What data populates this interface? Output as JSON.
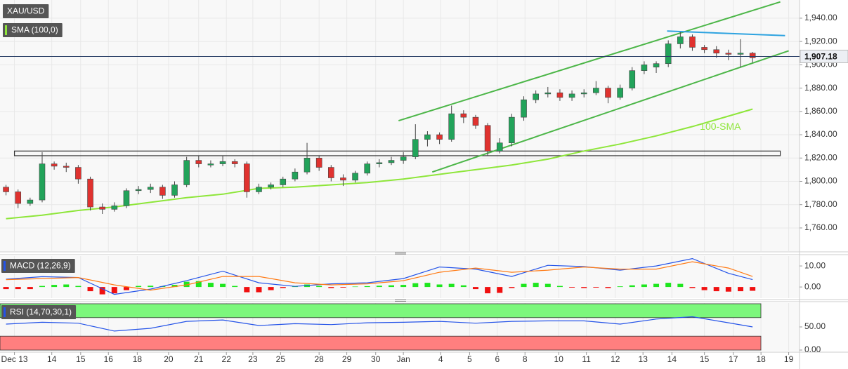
{
  "chart_data": [
    {
      "type": "candlestick",
      "title": "XAU/USD",
      "indicator": "SMA (100,0)",
      "xlim": [
        -0.5,
        65.9
      ],
      "xticks": [
        {
          "value": 0.7,
          "label": "Dec 13"
        },
        {
          "value": 3.8,
          "label": "14"
        },
        {
          "value": 6.2,
          "label": "15"
        },
        {
          "value": 8.5,
          "label": "16"
        },
        {
          "value": 10.9,
          "label": "18"
        },
        {
          "value": 13.5,
          "label": "20"
        },
        {
          "value": 16.0,
          "label": "21"
        },
        {
          "value": 18.3,
          "label": "22"
        },
        {
          "value": 20.5,
          "label": "23"
        },
        {
          "value": 22.8,
          "label": "25"
        },
        {
          "value": 26.0,
          "label": "28"
        },
        {
          "value": 28.3,
          "label": "29"
        },
        {
          "value": 30.7,
          "label": "30"
        },
        {
          "value": 33.0,
          "label": "Jan"
        },
        {
          "value": 36.1,
          "label": "4"
        },
        {
          "value": 38.5,
          "label": "5"
        },
        {
          "value": 40.8,
          "label": "6"
        },
        {
          "value": 43.1,
          "label": "8"
        },
        {
          "value": 45.9,
          "label": "10"
        },
        {
          "value": 48.2,
          "label": "11"
        },
        {
          "value": 50.6,
          "label": "12"
        },
        {
          "value": 52.9,
          "label": "13"
        },
        {
          "value": 55.3,
          "label": "14"
        },
        {
          "value": 58.0,
          "label": "15"
        },
        {
          "value": 60.4,
          "label": "17"
        },
        {
          "value": 62.7,
          "label": "18"
        },
        {
          "value": 65.0,
          "label": "19"
        }
      ],
      "ylim": [
        1740.1,
        1955.6
      ],
      "yticks": [
        {
          "value": 1760,
          "label": "1,760.00"
        },
        {
          "value": 1780,
          "label": "1,780.00"
        },
        {
          "value": 1800,
          "label": "1,800.00"
        },
        {
          "value": 1820,
          "label": "1,820.00"
        },
        {
          "value": 1840,
          "label": "1,840.00"
        },
        {
          "value": 1860,
          "label": "1,860.00"
        },
        {
          "value": 1880,
          "label": "1,880.00"
        },
        {
          "value": 1900,
          "label": "1,900.00"
        },
        {
          "value": 1920,
          "label": "1,920.00"
        },
        {
          "value": 1940,
          "label": "1,940.00"
        }
      ],
      "grid": true,
      "up_color": "#22a35a",
      "down_color": "#e0322f",
      "series": [
        {
          "open": [
            1795,
            1791,
            1781,
            1784,
            1815,
            1813,
            1812,
            1802,
            1778,
            1776,
            1779,
            1792,
            1793,
            1795,
            1788,
            1797,
            1818,
            1814,
            1815,
            1817,
            1815,
            1791,
            1795,
            1797,
            1802,
            1808,
            1820,
            1812,
            1803,
            1801,
            1807,
            1815,
            1816,
            1818,
            1821,
            1836,
            1840,
            1836,
            1858,
            1855,
            1848,
            1826,
            1833,
            1855,
            1870,
            1875,
            1876,
            1872,
            1875,
            1876,
            1880,
            1872,
            1880,
            1895,
            1898,
            1901,
            1918,
            1924,
            1915,
            1913,
            1910,
            1909,
            1910
          ],
          "high": [
            1797,
            1793,
            1786,
            1825,
            1817,
            1816,
            1814,
            1804,
            1781,
            1782,
            1794,
            1796,
            1798,
            1797,
            1800,
            1821,
            1822,
            1818,
            1822,
            1819,
            1817,
            1798,
            1799,
            1804,
            1811,
            1833,
            1822,
            1814,
            1806,
            1809,
            1817,
            1819,
            1821,
            1825,
            1849,
            1843,
            1842,
            1865,
            1861,
            1857,
            1850,
            1837,
            1858,
            1873,
            1878,
            1881,
            1879,
            1878,
            1879,
            1886,
            1882,
            1883,
            1898,
            1903,
            1903,
            1921,
            1928,
            1926,
            1917,
            1916,
            1913,
            1922,
            1911
          ],
          "low": [
            1788,
            1777,
            1779,
            1782,
            1810,
            1808,
            1798,
            1775,
            1772,
            1774,
            1777,
            1789,
            1790,
            1785,
            1786,
            1795,
            1812,
            1812,
            1813,
            1812,
            1786,
            1789,
            1793,
            1795,
            1800,
            1806,
            1809,
            1800,
            1796,
            1799,
            1805,
            1812,
            1814,
            1815,
            1819,
            1830,
            1832,
            1834,
            1850,
            1845,
            1822,
            1824,
            1830,
            1852,
            1867,
            1872,
            1869,
            1869,
            1872,
            1874,
            1867,
            1870,
            1878,
            1892,
            1893,
            1898,
            1914,
            1912,
            1910,
            1906,
            1904,
            1898,
            1902
          ],
          "close": [
            1791,
            1781,
            1784,
            1815,
            1813,
            1812,
            1802,
            1778,
            1776,
            1779,
            1792,
            1793,
            1795,
            1788,
            1797,
            1818,
            1815,
            1815,
            1817,
            1815,
            1791,
            1795,
            1797,
            1802,
            1808,
            1820,
            1812,
            1803,
            1801,
            1807,
            1815,
            1816,
            1818,
            1821,
            1836,
            1840,
            1836,
            1858,
            1855,
            1848,
            1826,
            1833,
            1855,
            1870,
            1875,
            1876,
            1872,
            1875,
            1876,
            1880,
            1872,
            1880,
            1895,
            1900,
            1901,
            1918,
            1924,
            1915,
            1913,
            1910,
            1909,
            1910,
            1906
          ]
        }
      ],
      "sma": {
        "name": "100-SMA",
        "color": "#8ee63a",
        "x": [
          0,
          3,
          6,
          9,
          12,
          15,
          18,
          21,
          24,
          27,
          30,
          33,
          36,
          39,
          42,
          45,
          48,
          51,
          54,
          57,
          60,
          62
        ],
        "values": [
          1768,
          1771,
          1775,
          1778,
          1782,
          1786,
          1789,
          1794,
          1795,
          1797,
          1799,
          1802,
          1806,
          1810,
          1814,
          1819,
          1826,
          1832,
          1839,
          1847,
          1856,
          1862
        ]
      },
      "zone": {
        "x": [
          0.7,
          64.3
        ],
        "values": [
          1822,
          1826
        ],
        "color": "#333333"
      },
      "trendlines": [
        {
          "color": "#4cb648",
          "x": [
            32.6,
            64.3
          ],
          "values": [
            1852,
            1954
          ]
        },
        {
          "color": "#4cb648",
          "x": [
            35.4,
            65.0
          ],
          "values": [
            1808,
            1912
          ]
        },
        {
          "color": "#2ea3e0",
          "x": [
            54.9,
            64.7
          ],
          "values": [
            1929,
            1925
          ]
        }
      ],
      "last_price": {
        "value": 1907.18,
        "label": "1,907.18"
      }
    },
    {
      "type": "macd",
      "title": "MACD (12,26,9)",
      "ylim": [
        -5.3,
        14.7
      ],
      "yticks": [
        {
          "value": 0,
          "label": "0.00"
        },
        {
          "value": 10,
          "label": "10.00"
        }
      ],
      "up_color": "#1ee61e",
      "down_color": "#f01010",
      "histogram": [
        -1,
        -1,
        -1,
        0.5,
        1,
        1.2,
        0.5,
        -2,
        -3.5,
        -3,
        -1.5,
        0.5,
        0.6,
        0.4,
        1,
        2.5,
        2.8,
        2,
        1.5,
        0.5,
        -2.5,
        -2.5,
        -1.5,
        -0.5,
        0.3,
        1.2,
        0.5,
        -0.5,
        -0.3,
        0.2,
        0.4,
        0.6,
        0.8,
        1,
        1.8,
        2,
        1.2,
        1.5,
        0.8,
        -1,
        -3,
        -2.8,
        -0.5,
        1.5,
        2,
        1.5,
        0.5,
        -0.3,
        -0.5,
        -0.3,
        -0.5,
        0.3,
        0.8,
        1.2,
        1.5,
        2,
        1.5,
        -0.5,
        -1.5,
        -2,
        -2.2,
        -2,
        -1.8
      ],
      "series": [
        {
          "color": "#2453e8",
          "x": [
            0,
            3,
            6,
            9,
            12,
            15,
            18,
            21,
            24,
            27,
            30,
            33,
            36,
            39,
            42,
            45,
            48,
            51,
            54,
            57,
            60,
            62
          ],
          "values": [
            3.7,
            4.9,
            4.5,
            -3.5,
            -1,
            3,
            7.5,
            2,
            0.3,
            1.5,
            2,
            4,
            9.5,
            8.5,
            5,
            10.3,
            9.7,
            8,
            10,
            13.5,
            6.5,
            3.5
          ]
        },
        {
          "color": "#ff7a14",
          "x": [
            0,
            3,
            6,
            9,
            12,
            15,
            18,
            21,
            24,
            27,
            30,
            33,
            36,
            39,
            42,
            45,
            48,
            51,
            54,
            57,
            60,
            62
          ],
          "values": [
            3.5,
            4,
            4.5,
            1,
            -1.5,
            1,
            5,
            5,
            2,
            1,
            1.5,
            3,
            7,
            9,
            7,
            8,
            9.5,
            8.5,
            8.5,
            12,
            9,
            5
          ]
        }
      ]
    },
    {
      "type": "line",
      "title": "RSI (14,70,30,1)",
      "ylim": [
        -1.5,
        101.5
      ],
      "yticks": [
        {
          "value": 0,
          "label": "0.00"
        },
        {
          "value": 50,
          "label": "50.00"
        }
      ],
      "bands": [
        {
          "range": [
            70,
            100
          ],
          "color": "#7cf77c"
        },
        {
          "range": [
            0,
            30
          ],
          "color": "#ff7f7f"
        }
      ],
      "series": [
        {
          "color": "#2453e8",
          "x": [
            0,
            3,
            6,
            9,
            12,
            15,
            18,
            21,
            24,
            27,
            30,
            33,
            36,
            39,
            42,
            45,
            48,
            51,
            54,
            57,
            60,
            62
          ],
          "values": [
            56,
            60,
            58,
            41,
            47,
            62,
            65,
            53,
            57,
            55,
            59,
            60,
            62,
            58,
            62,
            63,
            63,
            56,
            67,
            72,
            59,
            50
          ]
        }
      ]
    }
  ]
}
